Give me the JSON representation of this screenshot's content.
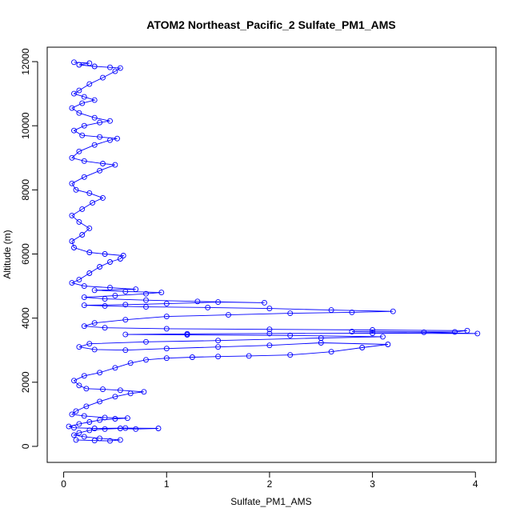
{
  "chart_data": {
    "type": "scatter",
    "title": "ATOM2 Northeast_Pacific_2 Sulfate_PM1_AMS",
    "xlabel": "Sulfate_PM1_AMS",
    "ylabel": "Altitude (m)",
    "xlim": [
      -0.16,
      4.2
    ],
    "ylim": [
      -500,
      12450
    ],
    "x_ticks": [
      0,
      1,
      2,
      3,
      4
    ],
    "y_ticks": [
      0,
      2000,
      4000,
      6000,
      8000,
      10000,
      12000
    ],
    "grid": false,
    "legend": "none",
    "marker": "open-circle",
    "connect_points": true,
    "color": "#0000ff",
    "series": [
      {
        "points": [
          [
            0.12,
            200
          ],
          [
            0.3,
            180
          ],
          [
            0.45,
            170
          ],
          [
            0.55,
            200
          ],
          [
            0.35,
            250
          ],
          [
            0.2,
            300
          ],
          [
            0.1,
            350
          ],
          [
            0.15,
            420
          ],
          [
            0.25,
            500
          ],
          [
            0.4,
            540
          ],
          [
            0.55,
            560
          ],
          [
            0.7,
            540
          ],
          [
            0.92,
            560
          ],
          [
            0.6,
            570
          ],
          [
            0.3,
            560
          ],
          [
            0.1,
            580
          ],
          [
            0.05,
            620
          ],
          [
            0.15,
            700
          ],
          [
            0.25,
            760
          ],
          [
            0.35,
            820
          ],
          [
            0.5,
            860
          ],
          [
            0.62,
            880
          ],
          [
            0.4,
            900
          ],
          [
            0.2,
            950
          ],
          [
            0.08,
            1000
          ],
          [
            0.12,
            1100
          ],
          [
            0.22,
            1250
          ],
          [
            0.35,
            1400
          ],
          [
            0.5,
            1550
          ],
          [
            0.65,
            1650
          ],
          [
            0.78,
            1700
          ],
          [
            0.55,
            1750
          ],
          [
            0.38,
            1780
          ],
          [
            0.22,
            1800
          ],
          [
            0.15,
            1900
          ],
          [
            0.1,
            2050
          ],
          [
            0.2,
            2200
          ],
          [
            0.35,
            2300
          ],
          [
            0.5,
            2450
          ],
          [
            0.65,
            2600
          ],
          [
            0.8,
            2700
          ],
          [
            1.0,
            2750
          ],
          [
            1.25,
            2780
          ],
          [
            1.5,
            2800
          ],
          [
            1.8,
            2820
          ],
          [
            2.2,
            2850
          ],
          [
            2.6,
            2950
          ],
          [
            2.9,
            3080
          ],
          [
            3.15,
            3180
          ],
          [
            2.5,
            3230
          ],
          [
            2.0,
            3150
          ],
          [
            1.5,
            3100
          ],
          [
            1.0,
            3050
          ],
          [
            0.6,
            3000
          ],
          [
            0.3,
            3020
          ],
          [
            0.15,
            3100
          ],
          [
            0.25,
            3200
          ],
          [
            0.8,
            3260
          ],
          [
            1.5,
            3300
          ],
          [
            2.5,
            3380
          ],
          [
            3.1,
            3420
          ],
          [
            2.2,
            3460
          ],
          [
            1.2,
            3480
          ],
          [
            0.6,
            3490
          ],
          [
            1.2,
            3510
          ],
          [
            2.0,
            3520
          ],
          [
            3.0,
            3530
          ],
          [
            4.02,
            3520
          ],
          [
            3.5,
            3560
          ],
          [
            2.8,
            3580
          ],
          [
            3.8,
            3570
          ],
          [
            3.92,
            3610
          ],
          [
            3.0,
            3630
          ],
          [
            2.0,
            3650
          ],
          [
            1.0,
            3670
          ],
          [
            0.4,
            3700
          ],
          [
            0.2,
            3750
          ],
          [
            0.3,
            3850
          ],
          [
            0.6,
            3950
          ],
          [
            1.0,
            4050
          ],
          [
            1.6,
            4100
          ],
          [
            2.2,
            4150
          ],
          [
            2.8,
            4180
          ],
          [
            3.2,
            4210
          ],
          [
            2.6,
            4250
          ],
          [
            2.0,
            4300
          ],
          [
            1.4,
            4330
          ],
          [
            0.8,
            4350
          ],
          [
            0.4,
            4380
          ],
          [
            0.2,
            4400
          ],
          [
            0.6,
            4420
          ],
          [
            1.0,
            4450
          ],
          [
            1.5,
            4500
          ],
          [
            1.95,
            4480
          ],
          [
            1.3,
            4520
          ],
          [
            0.8,
            4560
          ],
          [
            0.4,
            4600
          ],
          [
            0.2,
            4650
          ],
          [
            0.5,
            4700
          ],
          [
            0.8,
            4760
          ],
          [
            0.95,
            4800
          ],
          [
            0.6,
            4830
          ],
          [
            0.3,
            4870
          ],
          [
            0.7,
            4900
          ],
          [
            0.45,
            4950
          ],
          [
            0.2,
            5000
          ],
          [
            0.08,
            5100
          ],
          [
            0.15,
            5200
          ],
          [
            0.25,
            5400
          ],
          [
            0.35,
            5600
          ],
          [
            0.45,
            5750
          ],
          [
            0.55,
            5850
          ],
          [
            0.58,
            5950
          ],
          [
            0.4,
            6000
          ],
          [
            0.25,
            6050
          ],
          [
            0.1,
            6200
          ],
          [
            0.08,
            6400
          ],
          [
            0.18,
            6600
          ],
          [
            0.25,
            6800
          ],
          [
            0.15,
            7000
          ],
          [
            0.08,
            7200
          ],
          [
            0.18,
            7400
          ],
          [
            0.28,
            7600
          ],
          [
            0.38,
            7750
          ],
          [
            0.25,
            7900
          ],
          [
            0.12,
            8000
          ],
          [
            0.08,
            8200
          ],
          [
            0.2,
            8400
          ],
          [
            0.35,
            8600
          ],
          [
            0.5,
            8780
          ],
          [
            0.38,
            8820
          ],
          [
            0.2,
            8900
          ],
          [
            0.08,
            9000
          ],
          [
            0.15,
            9200
          ],
          [
            0.3,
            9400
          ],
          [
            0.45,
            9550
          ],
          [
            0.52,
            9600
          ],
          [
            0.35,
            9650
          ],
          [
            0.18,
            9700
          ],
          [
            0.1,
            9850
          ],
          [
            0.2,
            10000
          ],
          [
            0.35,
            10100
          ],
          [
            0.45,
            10150
          ],
          [
            0.3,
            10250
          ],
          [
            0.15,
            10400
          ],
          [
            0.08,
            10550
          ],
          [
            0.18,
            10700
          ],
          [
            0.3,
            10800
          ],
          [
            0.2,
            10900
          ],
          [
            0.1,
            11000
          ],
          [
            0.15,
            11100
          ],
          [
            0.25,
            11300
          ],
          [
            0.38,
            11500
          ],
          [
            0.5,
            11700
          ],
          [
            0.55,
            11800
          ],
          [
            0.45,
            11820
          ],
          [
            0.3,
            11850
          ],
          [
            0.15,
            11900
          ],
          [
            0.25,
            11950
          ],
          [
            0.1,
            11980
          ]
        ]
      }
    ]
  }
}
